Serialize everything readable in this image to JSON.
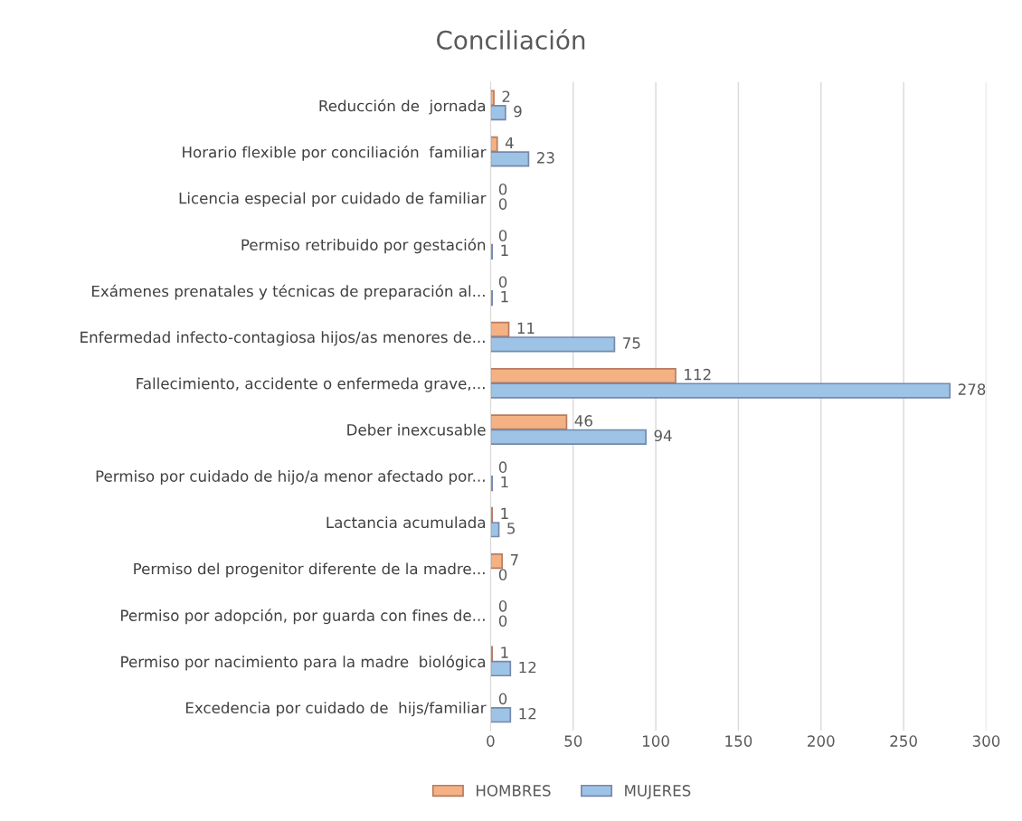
{
  "chart_data": {
    "type": "bar",
    "orientation": "horizontal",
    "title": "Conciliación",
    "categories": [
      "Reducción de  jornada",
      "Horario flexible por conciliación  familiar",
      "Licencia especial por cuidado de familiar",
      "Permiso retribuido por gestación",
      "Exámenes prenatales y técnicas de preparación al...",
      "Enfermedad infecto-contagiosa hijos/as menores de...",
      "Fallecimiento, accidente o enfermeda grave,...",
      "Deber inexcusable",
      "Permiso por cuidado de hijo/a menor afectado por...",
      "Lactancia acumulada",
      "Permiso del progenitor diferente de la madre...",
      "Permiso por adopción, por guarda con fines de...",
      "Permiso por nacimiento para la madre  biológica",
      "Excedencia por cuidado de  hijs/familiar"
    ],
    "series": [
      {
        "name": "HOMBRES",
        "color": "#f4b183",
        "values": [
          2,
          4,
          0,
          0,
          0,
          11,
          112,
          46,
          0,
          1,
          7,
          0,
          1,
          0
        ]
      },
      {
        "name": "MUJERES",
        "color": "#9dc3e6",
        "values": [
          9,
          23,
          0,
          1,
          1,
          75,
          278,
          94,
          1,
          5,
          0,
          0,
          12,
          12
        ]
      }
    ],
    "xlim": [
      0,
      300
    ],
    "xticks": [
      0,
      50,
      100,
      150,
      200,
      250,
      300
    ],
    "grid": "x",
    "legend": "bottom",
    "data_labels": true
  }
}
